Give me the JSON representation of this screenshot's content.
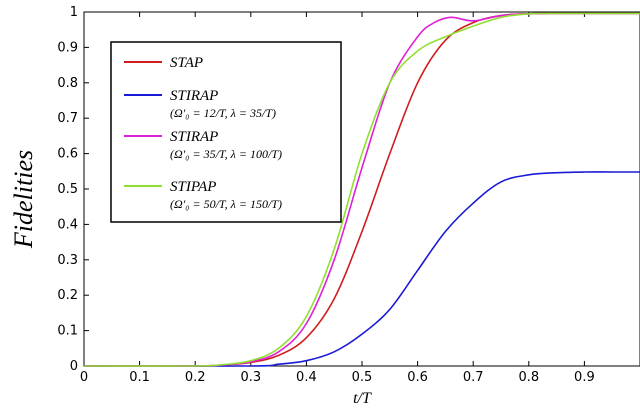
{
  "chart_data": {
    "type": "line",
    "xlabel": "t/T",
    "ylabel": "Fidelities",
    "xlim": [
      0,
      1
    ],
    "ylim": [
      0,
      1
    ],
    "x_ticks": [
      "0",
      "0.1",
      "0.2",
      "0.3",
      "0.4",
      "0.5",
      "0.6",
      "0.7",
      "0.8",
      "0.9"
    ],
    "y_ticks": [
      "0",
      "0.1",
      "0.2",
      "0.3",
      "0.4",
      "0.5",
      "0.6",
      "0.7",
      "0.8",
      "0.9",
      "1"
    ],
    "legend_position": "top-left",
    "series": [
      {
        "name": "STAP",
        "subtitle": "",
        "color": "#d01c1c",
        "points": [
          [
            0,
            0
          ],
          [
            0.2,
            0
          ],
          [
            0.25,
            0.003
          ],
          [
            0.3,
            0.01
          ],
          [
            0.35,
            0.03
          ],
          [
            0.4,
            0.08
          ],
          [
            0.45,
            0.19
          ],
          [
            0.5,
            0.38
          ],
          [
            0.55,
            0.6
          ],
          [
            0.6,
            0.8
          ],
          [
            0.65,
            0.92
          ],
          [
            0.7,
            0.97
          ],
          [
            0.75,
            0.99
          ],
          [
            0.8,
            0.995
          ],
          [
            0.85,
            0.996
          ],
          [
            0.9,
            0.996
          ],
          [
            0.95,
            0.996
          ],
          [
            1.0,
            0.996
          ]
        ]
      },
      {
        "name": "STIRAP",
        "subtitle": "(Ω′₀ = 12/T, λ = 35/T)",
        "color": "#1a1ad8",
        "points": [
          [
            0,
            0
          ],
          [
            0.3,
            0
          ],
          [
            0.35,
            0.005
          ],
          [
            0.4,
            0.015
          ],
          [
            0.45,
            0.04
          ],
          [
            0.5,
            0.09
          ],
          [
            0.55,
            0.16
          ],
          [
            0.6,
            0.27
          ],
          [
            0.65,
            0.38
          ],
          [
            0.7,
            0.46
          ],
          [
            0.75,
            0.52
          ],
          [
            0.8,
            0.54
          ],
          [
            0.85,
            0.546
          ],
          [
            0.9,
            0.548
          ],
          [
            0.95,
            0.548
          ],
          [
            1.0,
            0.548
          ]
        ]
      },
      {
        "name": "STIRAP",
        "subtitle": "(Ω′₀ = 35/T, λ = 100/T)",
        "color": "#e020d8",
        "points": [
          [
            0,
            0
          ],
          [
            0.2,
            0
          ],
          [
            0.25,
            0.003
          ],
          [
            0.3,
            0.012
          ],
          [
            0.35,
            0.04
          ],
          [
            0.4,
            0.12
          ],
          [
            0.45,
            0.3
          ],
          [
            0.5,
            0.56
          ],
          [
            0.55,
            0.8
          ],
          [
            0.6,
            0.93
          ],
          [
            0.63,
            0.97
          ],
          [
            0.66,
            0.985
          ],
          [
            0.7,
            0.975
          ],
          [
            0.75,
            0.99
          ],
          [
            0.8,
            0.995
          ],
          [
            0.85,
            0.996
          ],
          [
            0.9,
            0.996
          ],
          [
            0.95,
            0.996
          ],
          [
            1.0,
            0.996
          ]
        ]
      },
      {
        "name": "STIPAP",
        "subtitle": "(Ω′₀ = 50/T, λ = 150/T)",
        "color": "#90e030",
        "points": [
          [
            0,
            0
          ],
          [
            0.2,
            0
          ],
          [
            0.25,
            0.004
          ],
          [
            0.3,
            0.015
          ],
          [
            0.35,
            0.05
          ],
          [
            0.4,
            0.14
          ],
          [
            0.45,
            0.33
          ],
          [
            0.5,
            0.6
          ],
          [
            0.55,
            0.8
          ],
          [
            0.6,
            0.89
          ],
          [
            0.65,
            0.93
          ],
          [
            0.7,
            0.96
          ],
          [
            0.75,
            0.985
          ],
          [
            0.8,
            0.995
          ],
          [
            0.85,
            0.996
          ],
          [
            0.9,
            0.996
          ],
          [
            0.95,
            0.996
          ],
          [
            1.0,
            0.996
          ]
        ]
      }
    ]
  }
}
